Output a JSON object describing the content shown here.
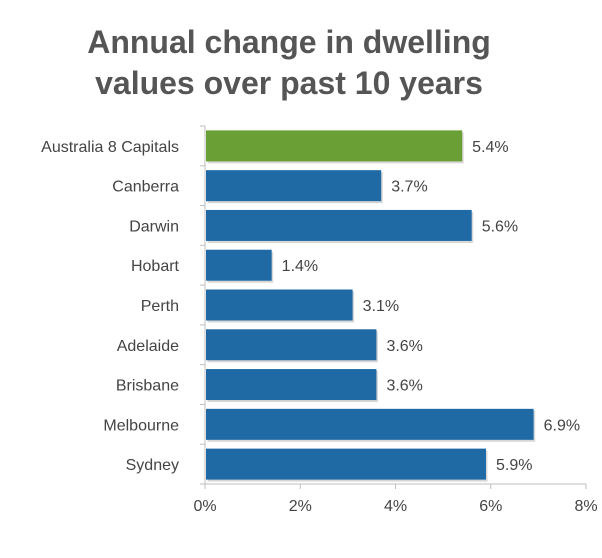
{
  "chart_data": {
    "type": "bar",
    "orientation": "horizontal",
    "title_lines": [
      "Annual change in dwelling",
      "values over past 10 years"
    ],
    "categories": [
      "Australia 8 Capitals",
      "Canberra",
      "Darwin",
      "Hobart",
      "Perth",
      "Adelaide",
      "Brisbane",
      "Melbourne",
      "Sydney"
    ],
    "values": [
      5.4,
      3.7,
      5.6,
      1.4,
      3.1,
      3.6,
      3.6,
      6.9,
      5.9
    ],
    "value_labels": [
      "5.4%",
      "3.7%",
      "5.6%",
      "1.4%",
      "3.1%",
      "3.6%",
      "3.6%",
      "6.9%",
      "5.9%"
    ],
    "colors": [
      "#6a9f36",
      "#1f6aa5",
      "#1f6aa5",
      "#1f6aa5",
      "#1f6aa5",
      "#1f6aa5",
      "#1f6aa5",
      "#1f6aa5",
      "#1f6aa5"
    ],
    "xlim": [
      0,
      8
    ],
    "x_ticks": [
      0,
      2,
      4,
      6,
      8
    ],
    "x_tick_labels": [
      "0%",
      "2%",
      "4%",
      "6%",
      "8%"
    ],
    "grid": false,
    "legend": "none",
    "colors_theme": {
      "highlight": "#6a9f36",
      "bar": "#1f6aa5",
      "axis": "#bfbfbf",
      "text": "#444444",
      "title": "#555555"
    }
  }
}
